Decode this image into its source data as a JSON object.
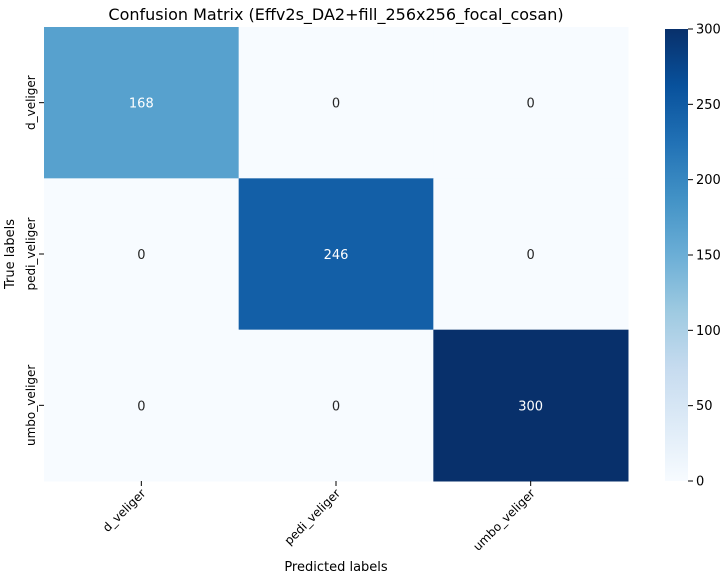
{
  "chart_data": {
    "type": "heatmap",
    "title": "Confusion Matrix (Effv2s_DA2+fill_256x256_focal_cosan)",
    "xlabel": "Predicted labels",
    "ylabel": "True labels",
    "x_categories": [
      "d_veliger",
      "pedi_veliger",
      "umbo_veliger"
    ],
    "y_categories": [
      "d_veliger",
      "pedi_veliger",
      "umbo_veliger"
    ],
    "values": [
      [
        168,
        0,
        0
      ],
      [
        0,
        246,
        0
      ],
      [
        0,
        0,
        300
      ]
    ],
    "annotations": true,
    "colormap": "Blues",
    "colorbar": {
      "range": [
        0,
        300
      ],
      "ticks": [
        0,
        50,
        100,
        150,
        200,
        250,
        300
      ]
    },
    "colors": {
      "low": "#f7fbff",
      "high": "#08306b",
      "annotation_light": "#ffffff",
      "annotation_dark": "#262626"
    }
  }
}
